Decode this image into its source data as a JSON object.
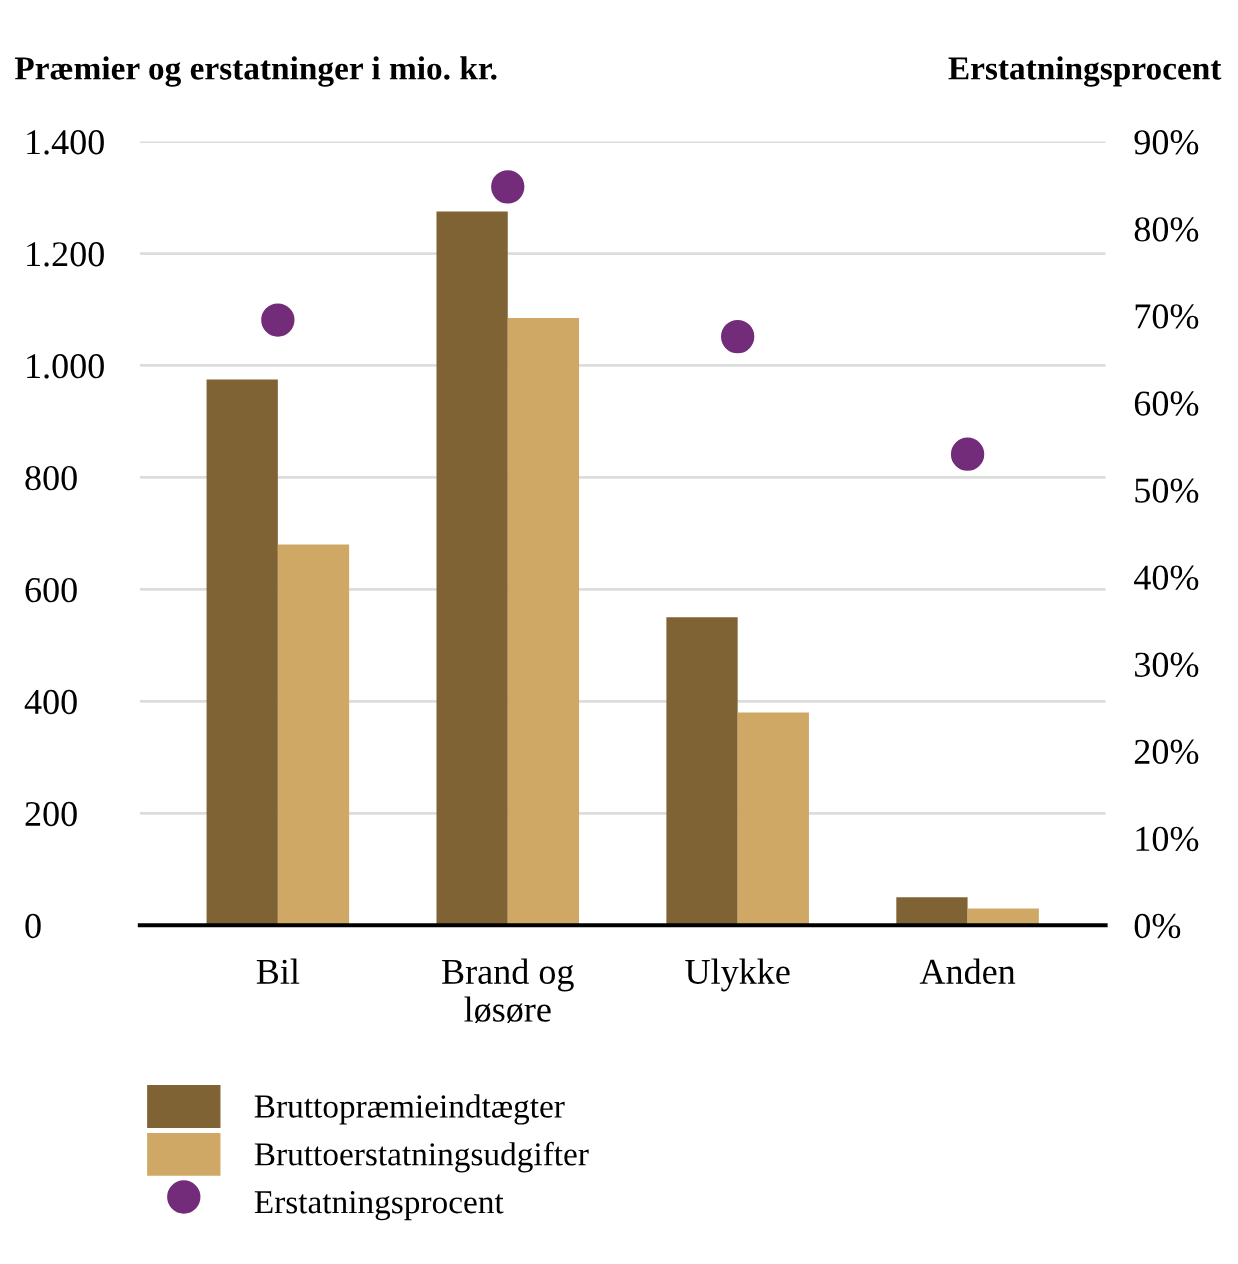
{
  "chart_data": {
    "type": "bar",
    "ylabel": "Præmier og erstatninger i mio. kr.",
    "y2label": "Erstatningsprocent",
    "categories": [
      "Bil",
      "Brand og\nløsøre",
      "Ulykke",
      "Anden"
    ],
    "series": [
      {
        "name": "Bruttopræmieindtægter",
        "color": "#7f6335",
        "values": [
          975,
          1275,
          550,
          50
        ]
      },
      {
        "name": "Bruttoerstatningsudgifter",
        "color": "#cfa866",
        "values": [
          680,
          1085,
          380,
          30
        ]
      },
      {
        "name": "Erstatningsprocent",
        "type": "scatter",
        "axis": "y2",
        "color": "#722c7a",
        "marker": "circle",
        "values": [
          69.5,
          84.8,
          67.6,
          54.1
        ]
      }
    ],
    "ylim": [
      0,
      1400
    ],
    "yticks": [
      {
        "value": 0,
        "label": "0"
      },
      {
        "value": 200,
        "label": "200"
      },
      {
        "value": 400,
        "label": "400"
      },
      {
        "value": 600,
        "label": "600"
      },
      {
        "value": 800,
        "label": "800"
      },
      {
        "value": 1000,
        "label": "1.000"
      },
      {
        "value": 1200,
        "label": "1.200"
      },
      {
        "value": 1400,
        "label": "1.400"
      }
    ],
    "y2lim": [
      0,
      90
    ],
    "y2ticks": [
      {
        "value": 0,
        "label": "0%"
      },
      {
        "value": 10,
        "label": "10%"
      },
      {
        "value": 20,
        "label": "20%"
      },
      {
        "value": 30,
        "label": "30%"
      },
      {
        "value": 40,
        "label": "40%"
      },
      {
        "value": 50,
        "label": "50%"
      },
      {
        "value": 60,
        "label": "60%"
      },
      {
        "value": 70,
        "label": "70%"
      },
      {
        "value": 80,
        "label": "80%"
      },
      {
        "value": 90,
        "label": "90%"
      }
    ],
    "grid": "y",
    "legend": "bottom"
  }
}
